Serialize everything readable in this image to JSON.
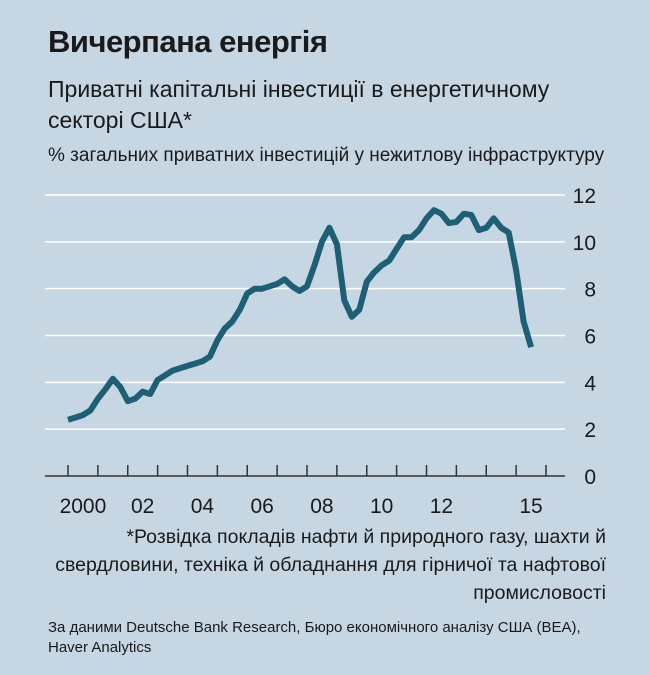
{
  "header": {
    "title": "Вичерпана енергія",
    "subtitle": "Приватні капітальні інвестиції в енергетичному секторі США*",
    "unit": "% загальних приватних інвестицій у нежитлову інфраструктуру"
  },
  "footer": {
    "footnote": "*Розвідка покладів нафти й природного газу, шахти й свердловини, техніка й обладнання для гірничої та нафтової промисловості",
    "source": "За даними Deutsche Bank Research, Бюро економічного аналізу США (BEA), Haver Analytics"
  },
  "colors": {
    "background": "#c6d7e3",
    "line": "#1d5f75",
    "grid": "#ffffff"
  },
  "chart_data": {
    "type": "line",
    "title": "Вичерпана енергія",
    "xlim": [
      2000,
      2016
    ],
    "ylim": [
      0,
      12
    ],
    "y_ticks": [
      0,
      2,
      4,
      6,
      8,
      10,
      12
    ],
    "x_tick_labels": [
      {
        "x": 2000,
        "label": "2000"
      },
      {
        "x": 2002,
        "label": "02"
      },
      {
        "x": 2004,
        "label": "04"
      },
      {
        "x": 2006,
        "label": "06"
      },
      {
        "x": 2008,
        "label": "08"
      },
      {
        "x": 2010,
        "label": "10"
      },
      {
        "x": 2012,
        "label": "12"
      },
      {
        "x": 2015,
        "label": "15"
      }
    ],
    "grid": true,
    "y_axis_side": "right",
    "series": [
      {
        "color": "#1d5f75",
        "points": [
          [
            2000.0,
            2.4
          ],
          [
            2000.25,
            2.5
          ],
          [
            2000.5,
            2.6
          ],
          [
            2000.75,
            2.8
          ],
          [
            2001.0,
            3.3
          ],
          [
            2001.25,
            3.7
          ],
          [
            2001.5,
            4.15
          ],
          [
            2001.75,
            3.8
          ],
          [
            2002.0,
            3.2
          ],
          [
            2002.25,
            3.3
          ],
          [
            2002.5,
            3.6
          ],
          [
            2002.75,
            3.5
          ],
          [
            2003.0,
            4.1
          ],
          [
            2003.25,
            4.3
          ],
          [
            2003.5,
            4.5
          ],
          [
            2003.75,
            4.6
          ],
          [
            2004.0,
            4.7
          ],
          [
            2004.25,
            4.8
          ],
          [
            2004.5,
            4.9
          ],
          [
            2004.75,
            5.1
          ],
          [
            2005.0,
            5.8
          ],
          [
            2005.25,
            6.3
          ],
          [
            2005.5,
            6.6
          ],
          [
            2005.75,
            7.1
          ],
          [
            2006.0,
            7.8
          ],
          [
            2006.25,
            8.0
          ],
          [
            2006.5,
            8.0
          ],
          [
            2006.75,
            8.1
          ],
          [
            2007.0,
            8.2
          ],
          [
            2007.25,
            8.4
          ],
          [
            2007.5,
            8.1
          ],
          [
            2007.75,
            7.9
          ],
          [
            2008.0,
            8.1
          ],
          [
            2008.25,
            9.0
          ],
          [
            2008.5,
            10.0
          ],
          [
            2008.75,
            10.6
          ],
          [
            2009.0,
            9.9
          ],
          [
            2009.25,
            7.5
          ],
          [
            2009.5,
            6.8
          ],
          [
            2009.75,
            7.1
          ],
          [
            2010.0,
            8.3
          ],
          [
            2010.25,
            8.7
          ],
          [
            2010.5,
            9.0
          ],
          [
            2010.75,
            9.2
          ],
          [
            2011.0,
            9.7
          ],
          [
            2011.25,
            10.2
          ],
          [
            2011.5,
            10.2
          ],
          [
            2011.75,
            10.5
          ],
          [
            2012.0,
            11.0
          ],
          [
            2012.25,
            11.35
          ],
          [
            2012.5,
            11.2
          ],
          [
            2012.75,
            10.8
          ],
          [
            2013.0,
            10.85
          ],
          [
            2013.25,
            11.2
          ],
          [
            2013.5,
            11.15
          ],
          [
            2013.75,
            10.5
          ],
          [
            2014.0,
            10.6
          ],
          [
            2014.25,
            11.0
          ],
          [
            2014.5,
            10.6
          ],
          [
            2014.75,
            10.4
          ],
          [
            2015.0,
            8.8
          ],
          [
            2015.25,
            6.6
          ],
          [
            2015.5,
            5.5
          ]
        ]
      }
    ]
  }
}
